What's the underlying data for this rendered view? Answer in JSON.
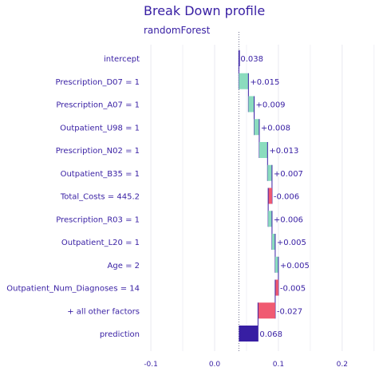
{
  "chart_data": {
    "type": "bar",
    "title": "Break Down profile",
    "subtitle": "randomForest",
    "xlabel": "",
    "ylabel": "",
    "xlim": [
      -0.13,
      0.245
    ],
    "x_ticks": [
      -0.1,
      0.0,
      0.1,
      0.2
    ],
    "x_tick_labels": [
      "-0.1",
      "0.0",
      "0.1",
      "0.2"
    ],
    "grid": true,
    "legend": "none",
    "baseline": 0.038,
    "colors": {
      "title": "#371ea3",
      "positive": "#8bdcbe",
      "negative": "#f05a71",
      "prediction": "#371ea3",
      "grid": "#e8e8f0",
      "text": "#371ea3"
    },
    "categories": [
      "intercept",
      "Prescription_D07 = 1",
      "Prescription_A07 = 1",
      "Outpatient_U98 = 1",
      "Prescription_N02 = 1",
      "Outpatient_B35 = 1",
      "Total_Costs = 445.2",
      "Prescription_R03 = 1",
      "Outpatient_L20 = 1",
      "Age = 2",
      "Outpatient_Num_Diagnoses = 14",
      "+ all other factors",
      "prediction"
    ],
    "values": [
      0.038,
      0.015,
      0.009,
      0.008,
      0.013,
      0.007,
      -0.006,
      0.006,
      0.005,
      0.005,
      -0.005,
      -0.027,
      0.068
    ],
    "value_labels": [
      "0.038",
      "+0.015",
      "+0.009",
      "+0.008",
      "+0.013",
      "+0.007",
      "-0.006",
      "+0.006",
      "+0.005",
      "+0.005",
      "-0.005",
      "-0.027",
      "0.068"
    ],
    "kinds": [
      "intercept",
      "positive",
      "positive",
      "positive",
      "positive",
      "positive",
      "negative",
      "positive",
      "positive",
      "positive",
      "negative",
      "negative",
      "prediction"
    ]
  }
}
